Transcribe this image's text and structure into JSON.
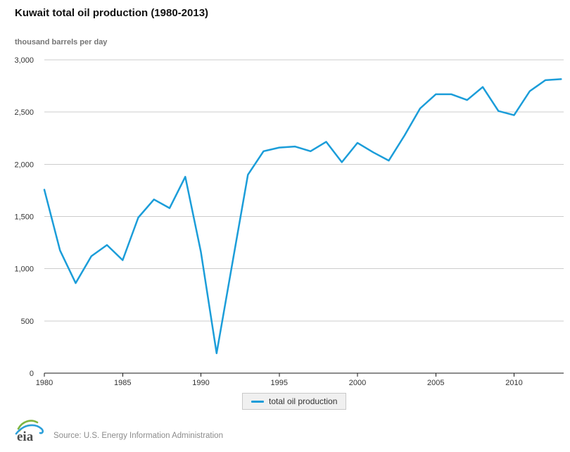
{
  "page": {
    "title": "Kuwait total oil production (1980-2013)",
    "subtitle": "thousand barrels per day",
    "source": "Source: U.S. Energy Information Administration",
    "logo_text": "eia"
  },
  "legend": {
    "label": "total oil production",
    "position": "bottom-center"
  },
  "colors": {
    "line": "#1b9dd9",
    "grid": "#cccccc",
    "axis": "#1a1a1a",
    "tick_text": "#333333",
    "title": "#111111",
    "subtitle": "#757575",
    "source_text": "#8c8c8c",
    "legend_bg": "#f0f0f0",
    "legend_border": "#c9c9c9",
    "logo_green": "#7fb541",
    "logo_blue": "#2b9fd9",
    "logo_yellow": "#e4b33c",
    "logo_text": "#4d4d4d"
  },
  "chart_data": {
    "type": "line",
    "title": "Kuwait total oil production (1980-2013)",
    "ylabel": "thousand barrels per day",
    "xlabel": "",
    "grid": "horizontal",
    "legend_position": "bottom-center",
    "xlim": [
      1980,
      2013
    ],
    "ylim": [
      0,
      3000
    ],
    "x_ticks": [
      1980,
      1985,
      1990,
      1995,
      2000,
      2005,
      2010
    ],
    "y_ticks": [
      0,
      500,
      1000,
      1500,
      2000,
      2500,
      3000
    ],
    "x": [
      1980,
      1981,
      1982,
      1983,
      1984,
      1985,
      1986,
      1987,
      1988,
      1989,
      1990,
      1991,
      1992,
      1993,
      1994,
      1995,
      1996,
      1997,
      1998,
      1999,
      2000,
      2001,
      2002,
      2003,
      2004,
      2005,
      2006,
      2007,
      2008,
      2009,
      2010,
      2011,
      2012,
      2013
    ],
    "series": [
      {
        "name": "total oil production",
        "color": "#1b9dd9",
        "values": [
          1757,
          1175,
          862,
          1120,
          1227,
          1082,
          1490,
          1663,
          1580,
          1880,
          1160,
          190,
          1045,
          1900,
          2125,
          2160,
          2170,
          2125,
          2215,
          2020,
          2205,
          2115,
          2035,
          2275,
          2535,
          2670,
          2670,
          2615,
          2740,
          2510,
          2470,
          2700,
          2805,
          2815
        ]
      }
    ]
  }
}
